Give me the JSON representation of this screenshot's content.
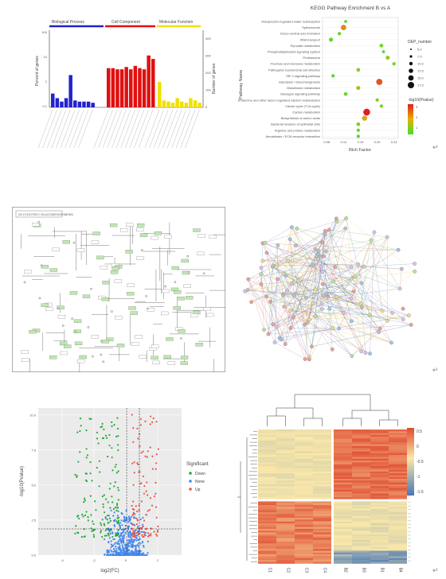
{
  "go_panel": {
    "categories": [
      "Biological Process",
      "Cell Component",
      "Molecular Function"
    ],
    "category_colors": [
      "#2222cc",
      "#e01010",
      "#f0e000"
    ],
    "y_left_label": "Percent of genes",
    "y_right_label": "Number of genes",
    "y_left_ticks": [
      "100",
      "10",
      "1",
      "0.1"
    ],
    "y_right_ticks": [
      "400",
      "300",
      "200",
      "100",
      "0"
    ],
    "bp_values": [
      12,
      8,
      5,
      8,
      28,
      6,
      5,
      5,
      5,
      4
    ],
    "cc_values": [
      34,
      34,
      33,
      33,
      35,
      33,
      36,
      34,
      33,
      45,
      42
    ],
    "mf_values": [
      22,
      6,
      5,
      4,
      8,
      5,
      4,
      8,
      6,
      4
    ]
  },
  "kegg_panel": {
    "title": "KEGG Pathway Enrichment B vs A",
    "y_axis_label": "Pathway Name",
    "x_axis_label": "Rich Factor",
    "x_ticks": [
      "0.08",
      "0.12",
      "0.16",
      "0.20",
      "0.24"
    ],
    "size_legend_title": "DEP_number",
    "size_legend_values": [
      "5.0",
      "7.5",
      "10.0",
      "12.5",
      "15.0",
      "17.5"
    ],
    "color_legend_title": "-log10(Pvalue)",
    "color_legend_ticks": [
      "3",
      "2",
      "1"
    ],
    "pathways": [
      {
        "name": "Vasopressin-regulated water reabsorption",
        "x": 0.125,
        "size": 5,
        "p": 1.0
      },
      {
        "name": "Spliceosome",
        "x": 0.12,
        "size": 12,
        "p": 2.2
      },
      {
        "name": "Dorso-ventral axis formation",
        "x": 0.11,
        "size": 6,
        "p": 1.1
      },
      {
        "name": "RNA transport",
        "x": 0.09,
        "size": 8,
        "p": 1.0
      },
      {
        "name": "Pyruvate metabolism",
        "x": 0.21,
        "size": 7,
        "p": 1.2
      },
      {
        "name": "Phosphatidylinositol signaling system",
        "x": 0.215,
        "size": 5,
        "p": 0.9
      },
      {
        "name": "Proteasome",
        "x": 0.225,
        "size": 8,
        "p": 1.4
      },
      {
        "name": "Fructose and mannose metabolism",
        "x": 0.24,
        "size": 6,
        "p": 1.1
      },
      {
        "name": "Pathogenic Escherichia coli infection",
        "x": 0.155,
        "size": 7,
        "p": 1.3
      },
      {
        "name": "HIF-1 signaling pathway",
        "x": 0.095,
        "size": 6,
        "p": 1.0
      },
      {
        "name": "Glycolysis / Gluconeogenesis",
        "x": 0.205,
        "size": 14,
        "p": 2.6
      },
      {
        "name": "Glutathione metabolism",
        "x": 0.155,
        "size": 8,
        "p": 1.5
      },
      {
        "name": "Glucagon signaling pathway",
        "x": 0.125,
        "size": 7,
        "p": 1.1
      },
      {
        "name": "Endocrine and other factor-regulated calcium reabsorption",
        "x": 0.2,
        "size": 6,
        "p": 1.3
      },
      {
        "name": "Citrate cycle (TCA cycle)",
        "x": 0.21,
        "size": 6,
        "p": 1.2
      },
      {
        "name": "Carbon metabolism",
        "x": 0.175,
        "size": 16,
        "p": 3.0
      },
      {
        "name": "Biosynthesis of amino acids",
        "x": 0.17,
        "size": 11,
        "p": 2.0
      },
      {
        "name": "Bacterial invasion of epithelial cells",
        "x": 0.155,
        "size": 7,
        "p": 1.2
      },
      {
        "name": "Arginine and proline metabolism",
        "x": 0.155,
        "size": 6,
        "p": 1.1
      },
      {
        "name": "Amoebiasis / ECM-receptor interaction",
        "x": 0.155,
        "size": 6,
        "p": 1.0
      }
    ]
  },
  "pathway_map": {
    "title_box": "GLYCOLYSIS / GLUCONEOGENESIS"
  },
  "volcano_panel": {
    "x_axis_label": "log2(FC)",
    "y_axis_label": "-log10(Pvalue)",
    "x_ticks": [
      "-4",
      "-2",
      "0",
      "2"
    ],
    "y_ticks": [
      "10.0",
      "7.5",
      "5.0",
      "2.5",
      "0.0"
    ],
    "legend_title": "Significant",
    "legend_items": [
      {
        "label": "Down",
        "color": "#22aa33"
      },
      {
        "label": "None",
        "color": "#4488ee"
      },
      {
        "label": "Up",
        "color": "#ee5544"
      }
    ]
  },
  "heatmap_panel": {
    "col_labels": [
      "C1",
      "C2",
      "C3",
      "C4",
      "B2",
      "B3",
      "B1",
      "B4"
    ],
    "scale_ticks": [
      "0.5",
      "0",
      "-0.5",
      "-1",
      "-1.5"
    ],
    "scale_colors": [
      "#e04a30",
      "#fbe8a8",
      "#4878b8"
    ]
  },
  "page_marks": [
    "↵",
    "↵",
    "↵"
  ]
}
